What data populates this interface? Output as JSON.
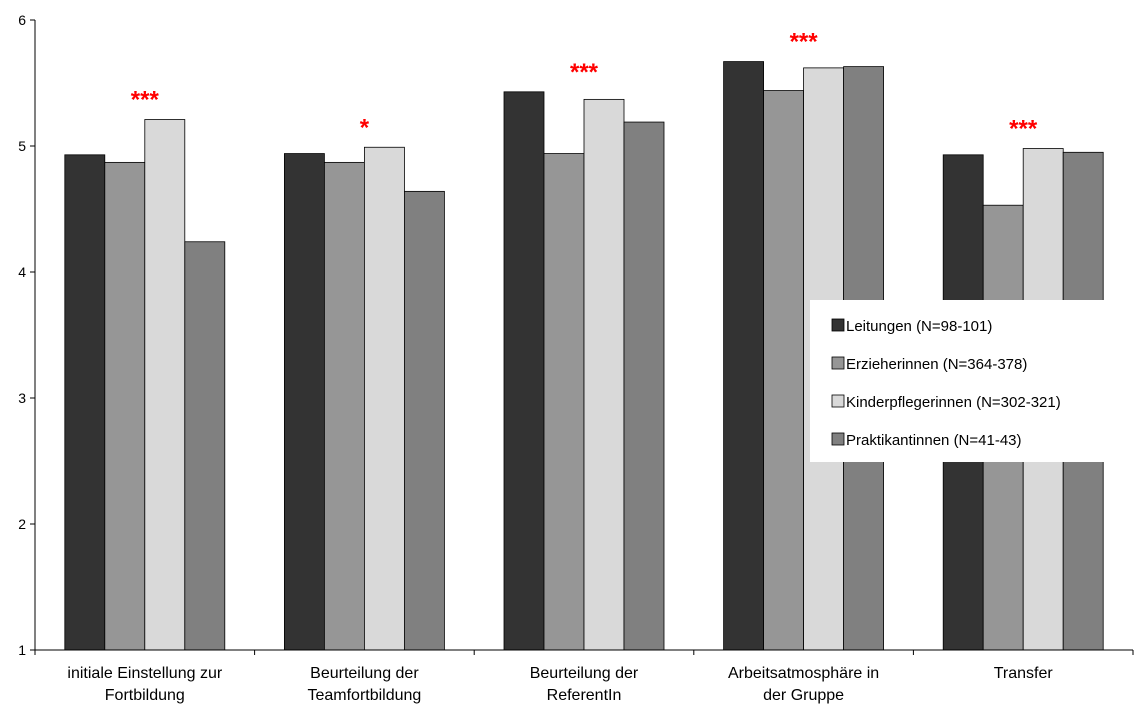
{
  "chart_data": {
    "type": "bar",
    "categories": [
      [
        "initiale Einstellung zur",
        "Fortbildung"
      ],
      [
        "Beurteilung der",
        "Teamfortbildung"
      ],
      [
        "Beurteilung der",
        "ReferentIn"
      ],
      [
        "Arbeitsatmosphäre in",
        "der Gruppe"
      ],
      [
        "Transfer"
      ]
    ],
    "series": [
      {
        "name": "Leitungen (N=98-101)",
        "color": "#333333",
        "values": [
          4.93,
          4.94,
          5.43,
          5.67,
          4.93
        ]
      },
      {
        "name": "Erzieherinnen (N=364-378)",
        "color": "#969696",
        "values": [
          4.87,
          4.87,
          4.94,
          5.44,
          4.53
        ]
      },
      {
        "name": "Kinderpflegerinnen (N=302-321)",
        "color": "#d9d9d9",
        "values": [
          5.21,
          4.99,
          5.37,
          5.62,
          4.98
        ]
      },
      {
        "name": "Praktikantinnen (N=41-43)",
        "color": "#808080",
        "values": [
          4.24,
          4.64,
          5.19,
          5.63,
          4.95
        ]
      }
    ],
    "significance": [
      "***",
      "*",
      "***",
      "***",
      "***"
    ],
    "ylim": [
      1,
      6
    ],
    "yticks": [
      "1",
      "2",
      "3",
      "4",
      "5",
      "6"
    ],
    "grid": false,
    "legend_position": "center-right",
    "title": "",
    "xlabel": "",
    "ylabel": ""
  }
}
